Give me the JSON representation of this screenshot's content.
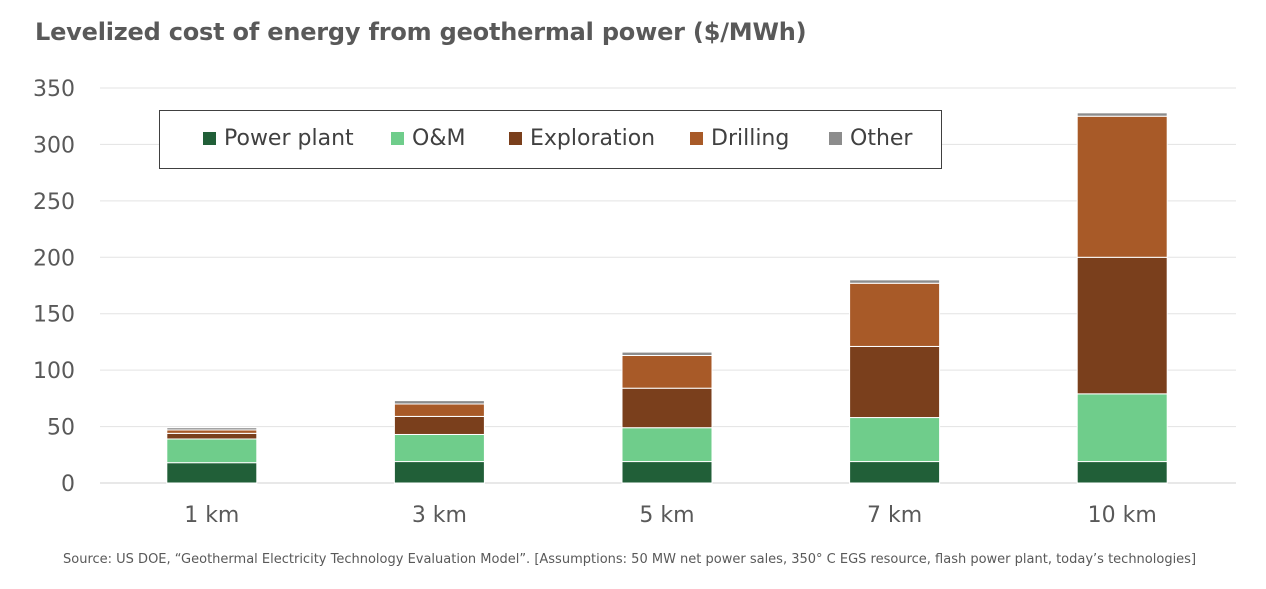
{
  "title": "Levelized cost of energy from geothermal power ($/MWh)",
  "source": "Source: US DOE, “Geothermal Electricity Technology Evaluation Model”.  [Assumptions: 50 MW net power sales, 350° C EGS resource, flash power plant, today’s technologies]",
  "chart_data": {
    "type": "bar",
    "stacked": true,
    "title": "Levelized cost of energy from geothermal power ($/MWh)",
    "categories": [
      "1 km",
      "3 km",
      "5 km",
      "7 km",
      "10 km"
    ],
    "ylim": [
      0,
      350
    ],
    "yticks": [
      0,
      50,
      100,
      150,
      200,
      250,
      300,
      350
    ],
    "grid": true,
    "legend_position": "top-left",
    "series": [
      {
        "name": "Power plant",
        "color": "#215f38",
        "values": [
          18,
          19,
          19,
          19,
          19
        ]
      },
      {
        "name": "O&M",
        "color": "#6fcd8b",
        "values": [
          21,
          24,
          30,
          39,
          60
        ]
      },
      {
        "name": "Exploration",
        "color": "#7a3f1c",
        "values": [
          5,
          16,
          35,
          63,
          121
        ]
      },
      {
        "name": "Drilling",
        "color": "#a85a28",
        "values": [
          3,
          11,
          29,
          56,
          125
        ]
      },
      {
        "name": "Other",
        "color": "#8c8c8c",
        "values": [
          2,
          3,
          3,
          3,
          3
        ]
      }
    ]
  }
}
